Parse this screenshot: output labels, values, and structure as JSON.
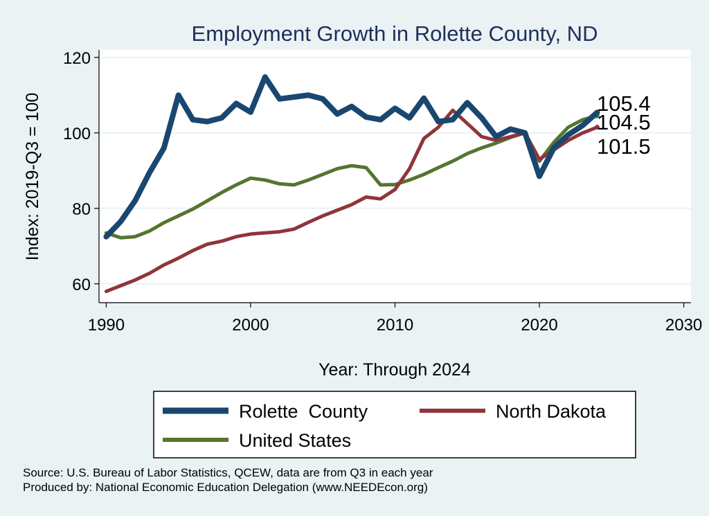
{
  "chart_data": {
    "type": "line",
    "title": "Employment Growth in Rolette County, ND",
    "xlabel": "Year: Through 2024",
    "ylabel": "Index: 2019-Q3 = 100",
    "xlim": [
      1989.5,
      2030.5
    ],
    "ylim": [
      55,
      122
    ],
    "x_ticks": [
      1990,
      2000,
      2010,
      2020,
      2030
    ],
    "y_ticks": [
      60,
      80,
      100,
      120
    ],
    "grid": "horizontal",
    "legend_position": "bottom",
    "x": [
      1990,
      1991,
      1992,
      1993,
      1994,
      1995,
      1996,
      1997,
      1998,
      1999,
      2000,
      2001,
      2002,
      2003,
      2004,
      2005,
      2006,
      2007,
      2008,
      2009,
      2010,
      2011,
      2012,
      2013,
      2014,
      2015,
      2016,
      2017,
      2018,
      2019,
      2020,
      2021,
      2022,
      2023,
      2024
    ],
    "series": [
      {
        "name": "Rolette  County",
        "color": "#1a476f",
        "width": 8,
        "end_label": "105.4",
        "values": [
          72.5,
          76.5,
          82,
          89.5,
          96,
          110,
          103.5,
          103,
          104,
          107.8,
          105.5,
          114.8,
          109,
          109.5,
          110,
          109,
          105,
          107,
          104.2,
          103.5,
          106.5,
          104,
          109.2,
          103,
          103.5,
          108,
          104,
          99,
          101,
          100,
          88.5,
          96,
          99.5,
          102,
          105.4
        ]
      },
      {
        "name": "North Dakota",
        "color": "#90353b",
        "width": 5,
        "end_label": "101.5",
        "values": [
          58,
          59.5,
          61,
          62.8,
          65,
          66.8,
          68.8,
          70.5,
          71.3,
          72.5,
          73.2,
          73.5,
          73.8,
          74.5,
          76.3,
          78,
          79.5,
          81,
          83,
          82.5,
          85,
          90.5,
          98.5,
          101.5,
          106,
          102.5,
          99,
          98,
          99,
          100,
          93,
          95.5,
          98,
          100,
          101.5
        ]
      },
      {
        "name": "United States",
        "color": "#55752f",
        "width": 5,
        "end_label": "104.5",
        "values": [
          73.5,
          72.2,
          72.5,
          74,
          76.2,
          78,
          79.8,
          82,
          84.2,
          86.2,
          88,
          87.5,
          86.5,
          86.2,
          87.5,
          89,
          90.5,
          91.3,
          90.8,
          86.2,
          86.3,
          87.5,
          89,
          90.8,
          92.5,
          94.5,
          96,
          97.3,
          98.8,
          100,
          92.5,
          97.5,
          101.5,
          103.5,
          104.5
        ]
      }
    ]
  },
  "source_lines": [
    "Source: U.S. Bureau of Labor Statistics, QCEW, data are from Q3 in each year",
    "Produced by: National Economic Education Delegation (www.NEEDEcon.org)"
  ]
}
